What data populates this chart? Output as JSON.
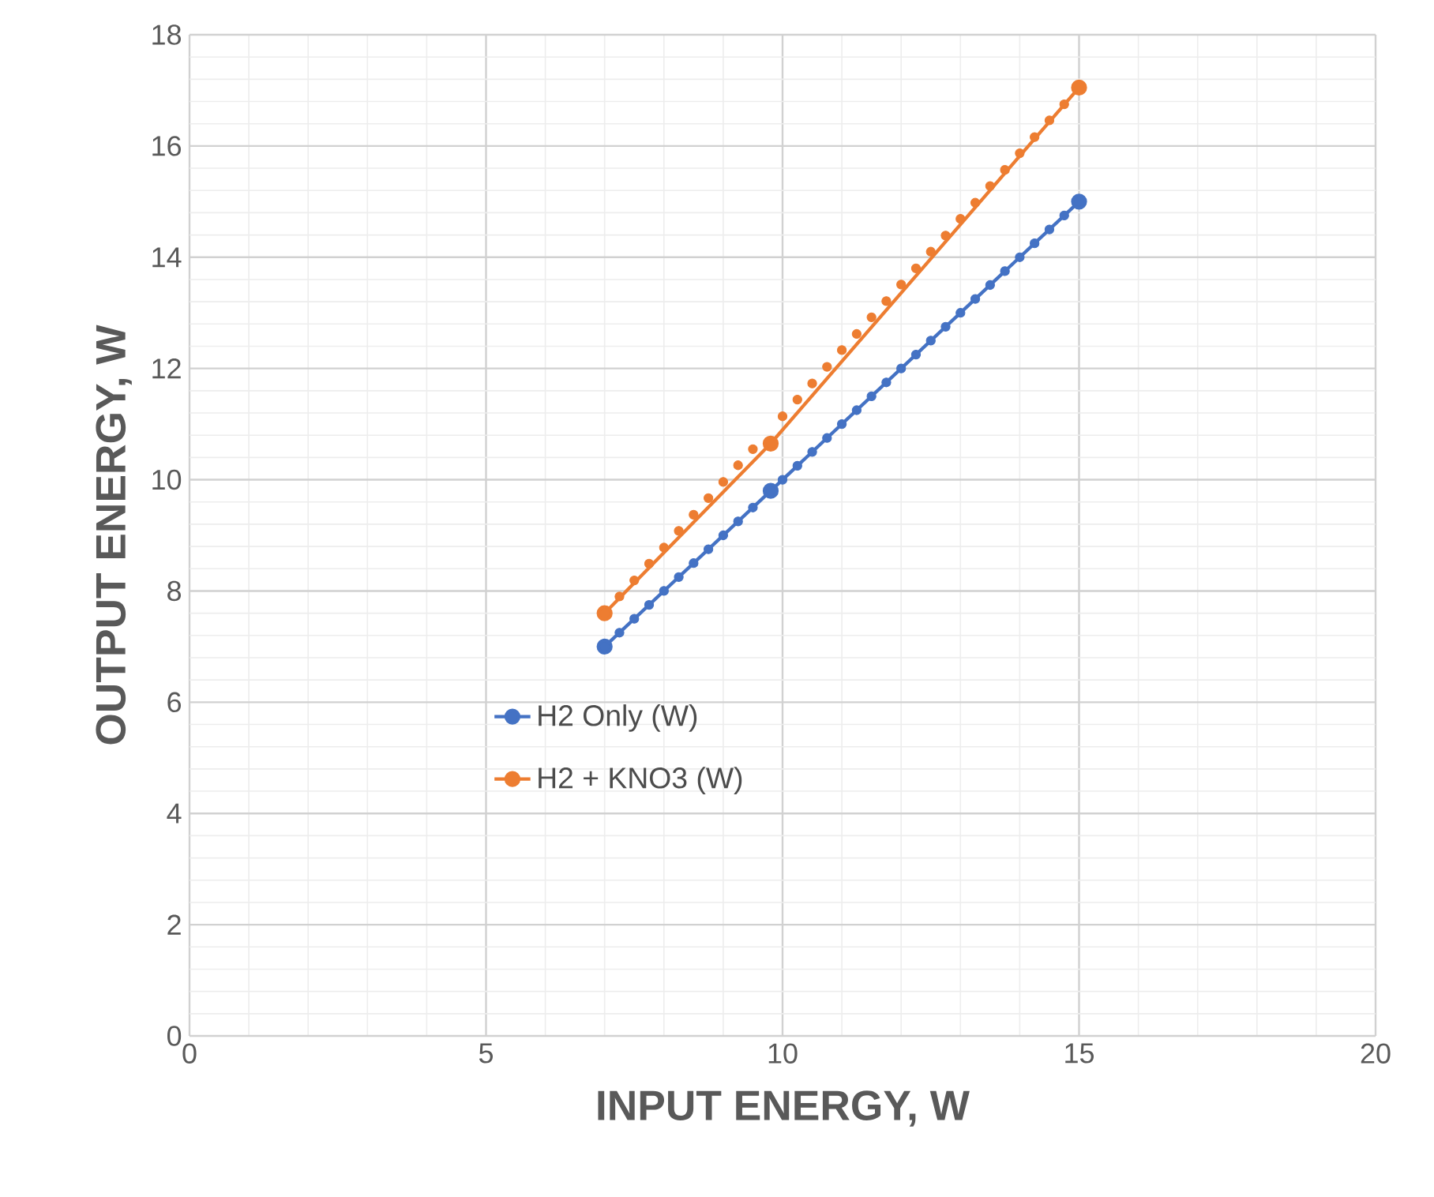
{
  "chart_data": {
    "type": "line",
    "xlabel": "INPUT ENERGY, W",
    "ylabel": "OUTPUT ENERGY, W",
    "xlim": [
      0,
      20
    ],
    "xticks": [
      0,
      5,
      10,
      15,
      20
    ],
    "ylim": [
      0,
      18
    ],
    "yticks": [
      0,
      2,
      4,
      6,
      8,
      10,
      12,
      14,
      16,
      18
    ],
    "grid": true,
    "legend": "left",
    "marker": "circle",
    "series": [
      {
        "name": "H2 Only (W)",
        "color": "#4472c4",
        "x": [
          7,
          9.8,
          15
        ],
        "values": [
          7,
          9.8,
          15
        ]
      },
      {
        "name": "H2 + KNO3 (W)",
        "color": "#ed7d31",
        "x": [
          7,
          9.8,
          15
        ],
        "values": [
          7.6,
          10.65,
          17.05
        ]
      },
      {
        "type": "scatter",
        "color": "#4472c4",
        "x": [
          7.25,
          7.5,
          7.75,
          8,
          8.25,
          8.5,
          8.75,
          9,
          9.25,
          9.5,
          10,
          10.25,
          10.5,
          10.75,
          11,
          11.25,
          11.5,
          11.75,
          12,
          12.25,
          12.5,
          12.75,
          13,
          13.25,
          13.5,
          13.75,
          14,
          14.25,
          14.5,
          14.75
        ],
        "values": [
          7.25,
          7.5,
          7.75,
          8,
          8.25,
          8.5,
          8.75,
          9,
          9.25,
          9.5,
          10,
          10.25,
          10.5,
          10.75,
          11,
          11.25,
          11.5,
          11.75,
          12,
          12.25,
          12.5,
          12.75,
          13,
          13.25,
          13.5,
          13.75,
          14,
          14.25,
          14.5,
          14.75
        ]
      },
      {
        "type": "scatter",
        "color": "#ed7d31",
        "x": [
          7.25,
          7.5,
          7.75,
          8,
          8.25,
          8.5,
          8.75,
          9,
          9.25,
          9.5,
          10,
          10.25,
          10.5,
          10.75,
          11,
          11.25,
          11.5,
          11.75,
          12,
          12.25,
          12.5,
          12.75,
          13,
          13.25,
          13.5,
          13.75,
          14,
          14.25,
          14.5,
          14.75
        ],
        "values": [
          7.9,
          8.19,
          8.49,
          8.78,
          9.08,
          9.37,
          9.67,
          9.96,
          10.26,
          10.55,
          11.14,
          11.44,
          11.73,
          12.03,
          12.33,
          12.62,
          12.92,
          13.21,
          13.51,
          13.8,
          14.1,
          14.39,
          14.69,
          14.98,
          15.28,
          15.57,
          15.87,
          16.16,
          16.46,
          16.75
        ]
      }
    ]
  }
}
